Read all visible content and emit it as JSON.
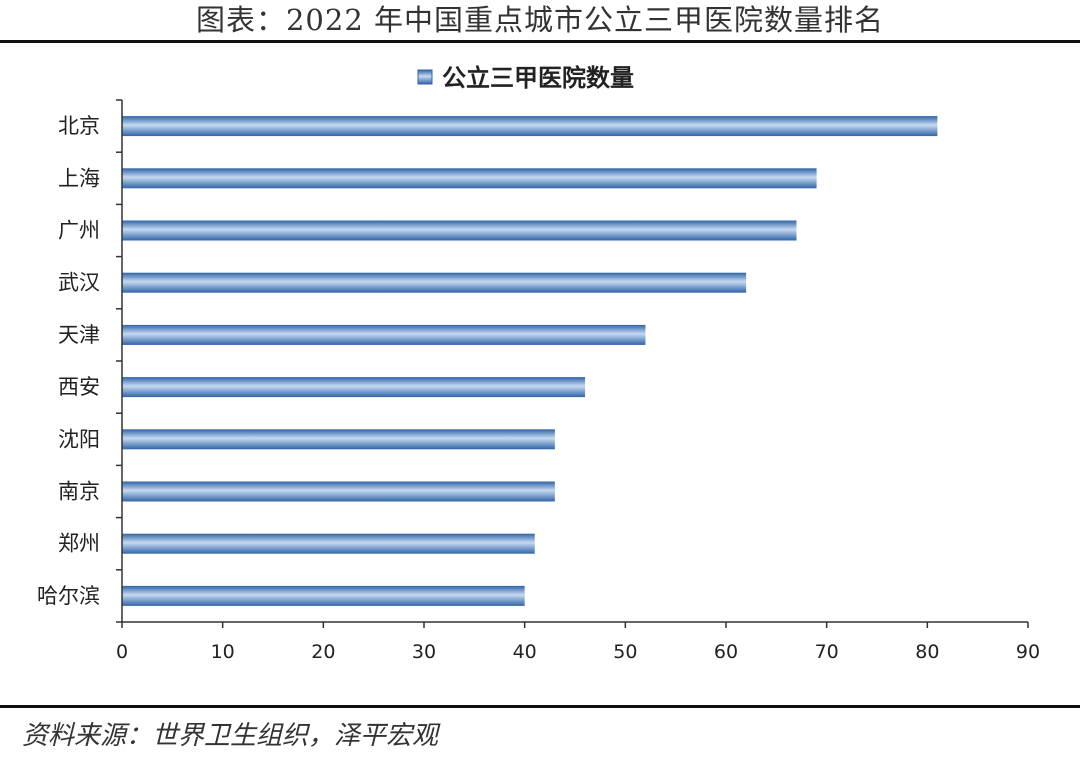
{
  "header": {
    "title": "图表：2022 年中国重点城市公立三甲医院数量排名"
  },
  "footer": {
    "source": "资料来源：世界卫生组织，泽平宏观"
  },
  "colors": {
    "bar": "#4a7ebb",
    "bar_light": "#c6d9f1",
    "axis": "#333333"
  },
  "chart_data": {
    "type": "bar",
    "orientation": "horizontal",
    "categories": [
      "北京",
      "上海",
      "广州",
      "武汉",
      "天津",
      "西安",
      "沈阳",
      "南京",
      "郑州",
      "哈尔滨"
    ],
    "series": [
      {
        "name": "公立三甲医院数量",
        "values": [
          81,
          69,
          67,
          62,
          52,
          46,
          43,
          43,
          41,
          40
        ]
      }
    ],
    "xlim": [
      0,
      90
    ],
    "xticks": [
      0,
      10,
      20,
      30,
      40,
      50,
      60,
      70,
      80,
      90
    ],
    "legend": "top-center",
    "grid": false
  }
}
